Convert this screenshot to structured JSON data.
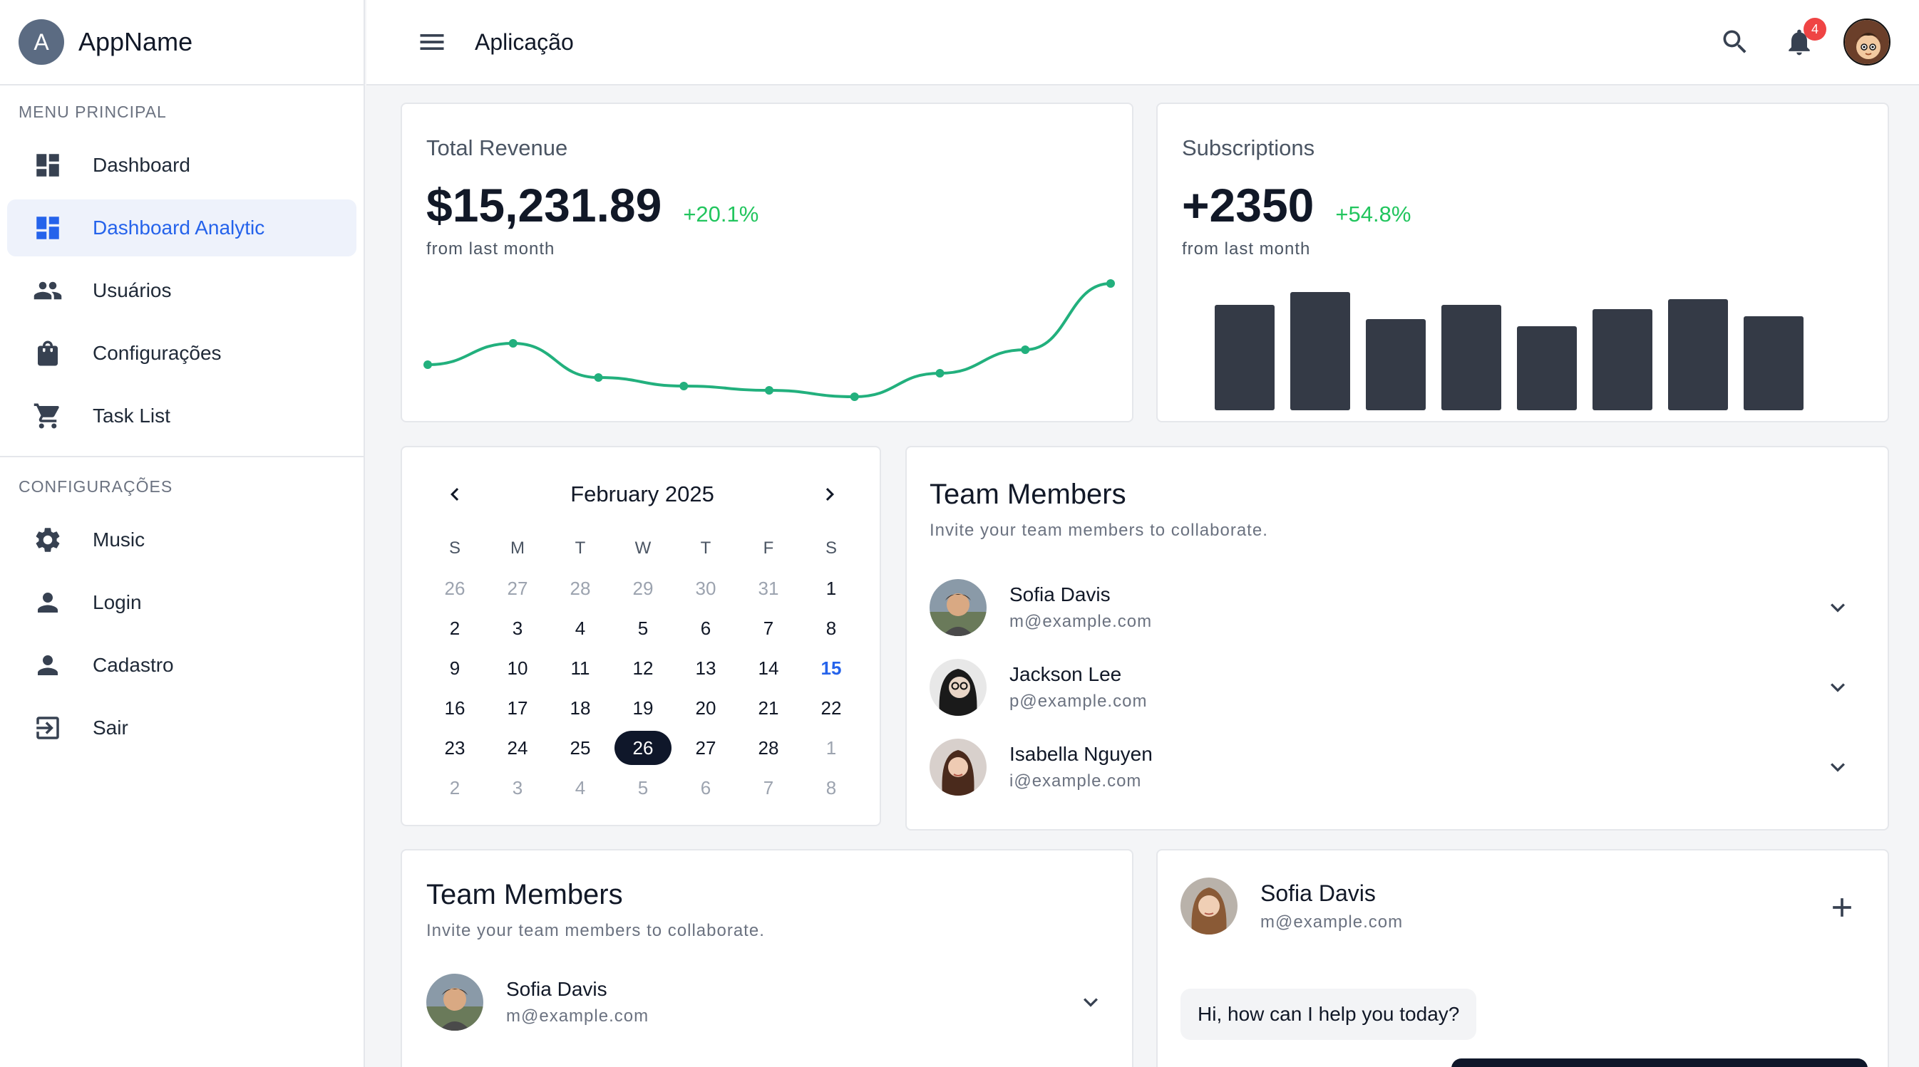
{
  "app": {
    "avatar_letter": "A",
    "name": "AppName"
  },
  "header": {
    "title": "Aplicação",
    "notification_count": "4"
  },
  "sidebar": {
    "main_section": "MENU PRINCIPAL",
    "main_items": [
      {
        "label": "Dashboard",
        "icon": "dashboard-icon"
      },
      {
        "label": "Dashboard Analytic",
        "icon": "dashboard-icon",
        "active": true
      },
      {
        "label": "Usuários",
        "icon": "people-icon"
      },
      {
        "label": "Configurações",
        "icon": "shopping-bag-icon"
      },
      {
        "label": "Task List",
        "icon": "cart-icon"
      }
    ],
    "config_section": "CONFIGURAÇÕES",
    "config_items": [
      {
        "label": "Music",
        "icon": "gear-icon"
      },
      {
        "label": "Login",
        "icon": "person-icon"
      },
      {
        "label": "Cadastro",
        "icon": "person-icon"
      },
      {
        "label": "Sair",
        "icon": "logout-icon"
      }
    ]
  },
  "revenue": {
    "label": "Total Revenue",
    "value": "$15,231.89",
    "delta": "+20.1%",
    "sub": "from last month"
  },
  "subscriptions": {
    "label": "Subscriptions",
    "value": "+2350",
    "delta": "+54.8%",
    "sub": "from last month"
  },
  "chart_data": [
    {
      "type": "line",
      "values": [
        20,
        30,
        14,
        10,
        8,
        5,
        16,
        27,
        58
      ],
      "color": "#22b07d"
    },
    {
      "type": "bar",
      "values": [
        74,
        83,
        64,
        74,
        59,
        71,
        78,
        66
      ],
      "color": "#343a46"
    }
  ],
  "calendar": {
    "title": "February 2025",
    "weekdays": [
      "S",
      "M",
      "T",
      "W",
      "T",
      "F",
      "S"
    ],
    "weeks": [
      [
        "26",
        "27",
        "28",
        "29",
        "30",
        "31",
        "1"
      ],
      [
        "2",
        "3",
        "4",
        "5",
        "6",
        "7",
        "8"
      ],
      [
        "9",
        "10",
        "11",
        "12",
        "13",
        "14",
        "15"
      ],
      [
        "16",
        "17",
        "18",
        "19",
        "20",
        "21",
        "22"
      ],
      [
        "23",
        "24",
        "25",
        "26",
        "27",
        "28",
        "1"
      ],
      [
        "2",
        "3",
        "4",
        "5",
        "6",
        "7",
        "8"
      ]
    ],
    "today": "15",
    "selected": "26"
  },
  "team1": {
    "title": "Team Members",
    "subtitle": "Invite your team members to collaborate.",
    "members": [
      {
        "name": "Sofia Davis",
        "email": "m@example.com"
      },
      {
        "name": "Jackson Lee",
        "email": "p@example.com"
      },
      {
        "name": "Isabella Nguyen",
        "email": "i@example.com"
      }
    ]
  },
  "team2": {
    "title": "Team Members",
    "subtitle": "Invite your team members to collaborate.",
    "members": [
      {
        "name": "Sofia Davis",
        "email": "m@example.com"
      }
    ]
  },
  "chat": {
    "name": "Sofia Davis",
    "email": "m@example.com",
    "message": "Hi, how can I help you today?"
  }
}
